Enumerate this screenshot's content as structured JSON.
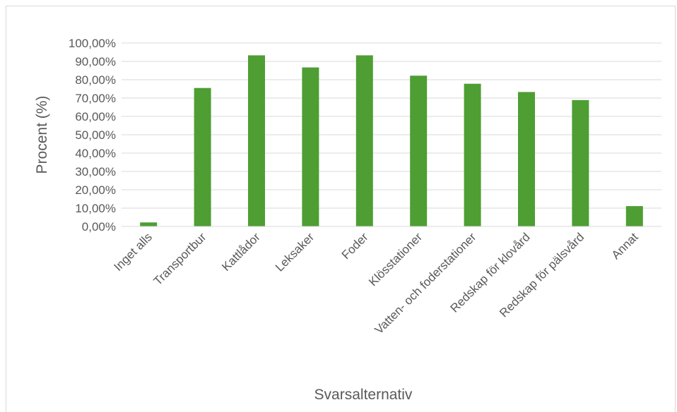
{
  "chart_data": {
    "type": "bar",
    "categories": [
      "Inget alls",
      "Transportbur",
      "Kattlådor",
      "Leksaker",
      "Foder",
      "Klösstationer",
      "Vatten- och foderstationer",
      "Redskap för klovård",
      "Redskap för pälsvård",
      "Annat"
    ],
    "values": [
      2.2,
      75.5,
      93.3,
      86.7,
      93.3,
      82.2,
      77.8,
      73.3,
      68.9,
      11.1
    ],
    "xlabel": "Svarsalternativ",
    "ylabel": "Procent (%)",
    "ylim": [
      0,
      100
    ],
    "yticks": [
      "0,00%",
      "10,00%",
      "20,00%",
      "30,00%",
      "40,00%",
      "50,00%",
      "60,00%",
      "70,00%",
      "80,00%",
      "90,00%",
      "100,00%"
    ],
    "bar_color": "#4e9e34",
    "grid": true,
    "legend": "none"
  }
}
